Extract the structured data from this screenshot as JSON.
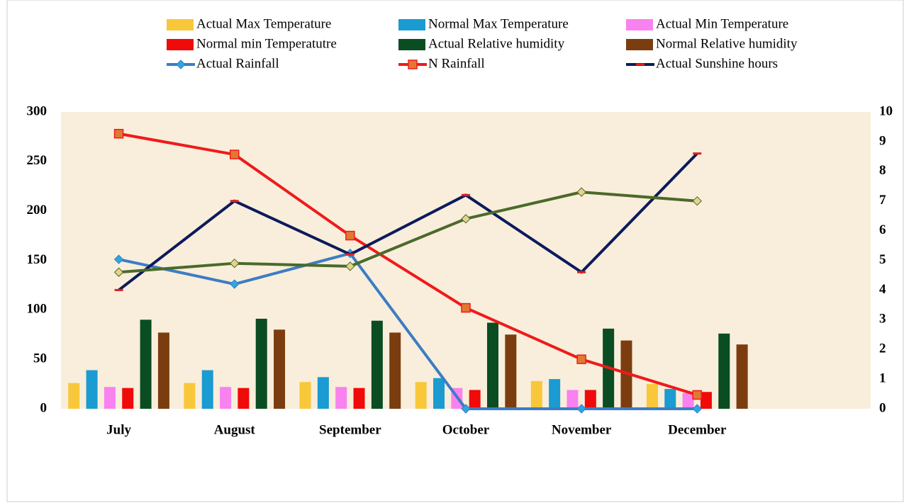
{
  "chart_data": {
    "type": "bar",
    "categories": [
      "July",
      "August",
      "September",
      "October",
      "November",
      "December",
      null
    ],
    "ylim": [
      0,
      300
    ],
    "yticks": [
      0,
      50,
      100,
      150,
      200,
      250,
      300
    ],
    "y2lim": [
      0,
      10
    ],
    "y2ticks": [
      0,
      1,
      2,
      3,
      4,
      5,
      6,
      7,
      8,
      9,
      10
    ],
    "plot_background": "#f8eedb",
    "series": [
      {
        "name": "Actual Max Temperature",
        "type": "bar",
        "color": "#f9c73a",
        "values": [
          26,
          26,
          27,
          27,
          28,
          25,
          null
        ]
      },
      {
        "name": "Normal Max Temperature",
        "type": "bar",
        "color": "#1a9bd1",
        "values": [
          39,
          39,
          32,
          31,
          30,
          20,
          null
        ]
      },
      {
        "name": "Actual Min Temperature",
        "type": "bar",
        "color": "#f882f0",
        "values": [
          22,
          22,
          22,
          21,
          19,
          16,
          null
        ]
      },
      {
        "name": "Normal min Temperatutre",
        "type": "bar",
        "color": "#f00a0a",
        "values": [
          21,
          21,
          21,
          19,
          19,
          17,
          null
        ]
      },
      {
        "name": "Actual Relative humidity",
        "type": "bar",
        "color": "#0a4d22",
        "values": [
          90,
          91,
          89,
          87,
          81,
          76,
          null
        ]
      },
      {
        "name": "Normal Relative humidity",
        "type": "bar",
        "color": "#7b3d0f",
        "values": [
          77,
          80,
          77,
          75,
          69,
          65,
          null
        ]
      },
      {
        "name": "Actual Rainfall",
        "type": "line",
        "color": "#3d7cc4",
        "marker": "diamond",
        "marker_color": "#2aa8e0",
        "values": [
          151,
          126,
          157,
          0,
          0,
          0,
          null
        ]
      },
      {
        "name": "N Rainfall",
        "type": "line",
        "color": "#f01a1a",
        "marker": "square",
        "marker_color": "#e07a30",
        "values": [
          278,
          257,
          175,
          102,
          50,
          14,
          null
        ]
      },
      {
        "name": "Actual Sunshine hours",
        "type": "line",
        "axis": "y2",
        "color": "#0d1a5c",
        "marker": "dash",
        "marker_color": "#e02020",
        "values": [
          4.0,
          7.0,
          5.2,
          7.2,
          4.6,
          8.6,
          null
        ]
      },
      {
        "type": "line",
        "color": "#4a6a2a",
        "marker": "diamond",
        "marker_color": "#e6d28c",
        "values": [
          138,
          147,
          144,
          192,
          219,
          210,
          null
        ]
      }
    ]
  }
}
